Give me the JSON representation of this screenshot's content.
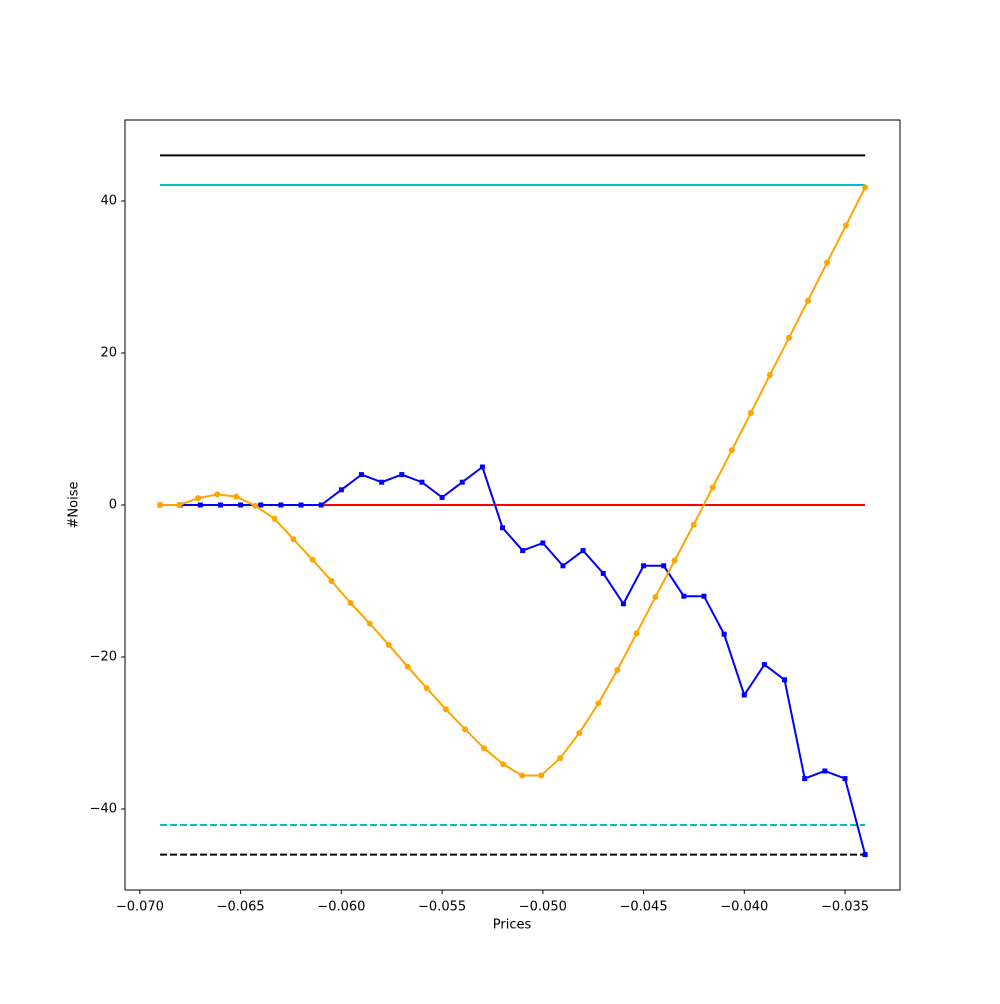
{
  "chart_data": {
    "type": "line",
    "xlabel": "Prices",
    "ylabel": "#Noise",
    "xlim": [
      -0.07074,
      -0.03227
    ],
    "ylim": [
      -50.66,
      50.66
    ],
    "xticks": [
      {
        "value": -0.07,
        "label": "−0.070"
      },
      {
        "value": -0.065,
        "label": "−0.065"
      },
      {
        "value": -0.06,
        "label": "−0.060"
      },
      {
        "value": -0.055,
        "label": "−0.055"
      },
      {
        "value": -0.05,
        "label": "−0.050"
      },
      {
        "value": -0.045,
        "label": "−0.045"
      },
      {
        "value": -0.04,
        "label": "−0.040"
      },
      {
        "value": -0.035,
        "label": "−0.035"
      }
    ],
    "yticks": [
      {
        "value": -40,
        "label": "−40"
      },
      {
        "value": -20,
        "label": "−20"
      },
      0,
      20,
      40
    ],
    "series": [
      {
        "color": "#000000",
        "dashed": false,
        "x": [
          -0.069,
          -0.034
        ],
        "values": [
          46,
          46
        ]
      },
      {
        "color": "#00bfbf",
        "dashed": false,
        "x": [
          -0.069,
          -0.034
        ],
        "values": [
          42.1,
          42.1
        ]
      },
      {
        "color": "#ff0000",
        "dashed": false,
        "x": [
          -0.069,
          -0.034
        ],
        "values": [
          0,
          0
        ]
      },
      {
        "color": "#00bfbf",
        "dashed": true,
        "x": [
          -0.069,
          -0.034
        ],
        "values": [
          -42.1,
          -42.1
        ]
      },
      {
        "color": "#000000",
        "dashed": true,
        "x": [
          -0.069,
          -0.034
        ],
        "values": [
          -46,
          -46
        ]
      },
      {
        "color": "#0000ff",
        "marker": "square",
        "x": [
          -0.069,
          -0.068,
          -0.067,
          -0.066,
          -0.065,
          -0.064,
          -0.063,
          -0.062,
          -0.061,
          -0.06,
          -0.059,
          -0.058,
          -0.057,
          -0.056,
          -0.055,
          -0.054,
          -0.053,
          -0.052,
          -0.051,
          -0.05,
          -0.049,
          -0.048,
          -0.047,
          -0.046,
          -0.045,
          -0.044,
          -0.043,
          -0.042,
          -0.041,
          -0.04,
          -0.039,
          -0.038,
          -0.037,
          -0.036,
          -0.035,
          -0.034
        ],
        "values": [
          0,
          0,
          0,
          0,
          0,
          0,
          0,
          0,
          0,
          2,
          4,
          3,
          4,
          3,
          1,
          3,
          5,
          -3,
          -6,
          -5,
          -8,
          -6,
          -9,
          -13,
          -8,
          -8,
          -12,
          -12,
          -17,
          -25,
          -21,
          -23,
          -36,
          -35,
          -36,
          -46
        ]
      },
      {
        "color": "#ffa500",
        "marker": "circle",
        "x": [
          -0.069,
          -0.06805,
          -0.06711,
          -0.06616,
          -0.06522,
          -0.06427,
          -0.06332,
          -0.06238,
          -0.06143,
          -0.06049,
          -0.05954,
          -0.05859,
          -0.05765,
          -0.0567,
          -0.05576,
          -0.05481,
          -0.05386,
          -0.05292,
          -0.05197,
          -0.05103,
          -0.05008,
          -0.04914,
          -0.04819,
          -0.04724,
          -0.0463,
          -0.04535,
          -0.04441,
          -0.04346,
          -0.04251,
          -0.04157,
          -0.04062,
          -0.03968,
          -0.03873,
          -0.03778,
          -0.03684,
          -0.03589,
          -0.03495,
          -0.034
        ],
        "values": [
          0,
          0,
          0.9,
          1.4,
          1.1,
          -0.1,
          -1.8,
          -4.5,
          -7.2,
          -10,
          -12.9,
          -15.6,
          -18.4,
          -21.3,
          -24.1,
          -26.9,
          -29.5,
          -32,
          -34.1,
          -35.6,
          -35.6,
          -33.3,
          -30,
          -26.1,
          -21.7,
          -16.9,
          -12.1,
          -7.3,
          -2.6,
          2.3,
          7.2,
          12.1,
          17.1,
          22,
          26.9,
          31.9,
          36.8,
          41.8
        ]
      }
    ]
  }
}
